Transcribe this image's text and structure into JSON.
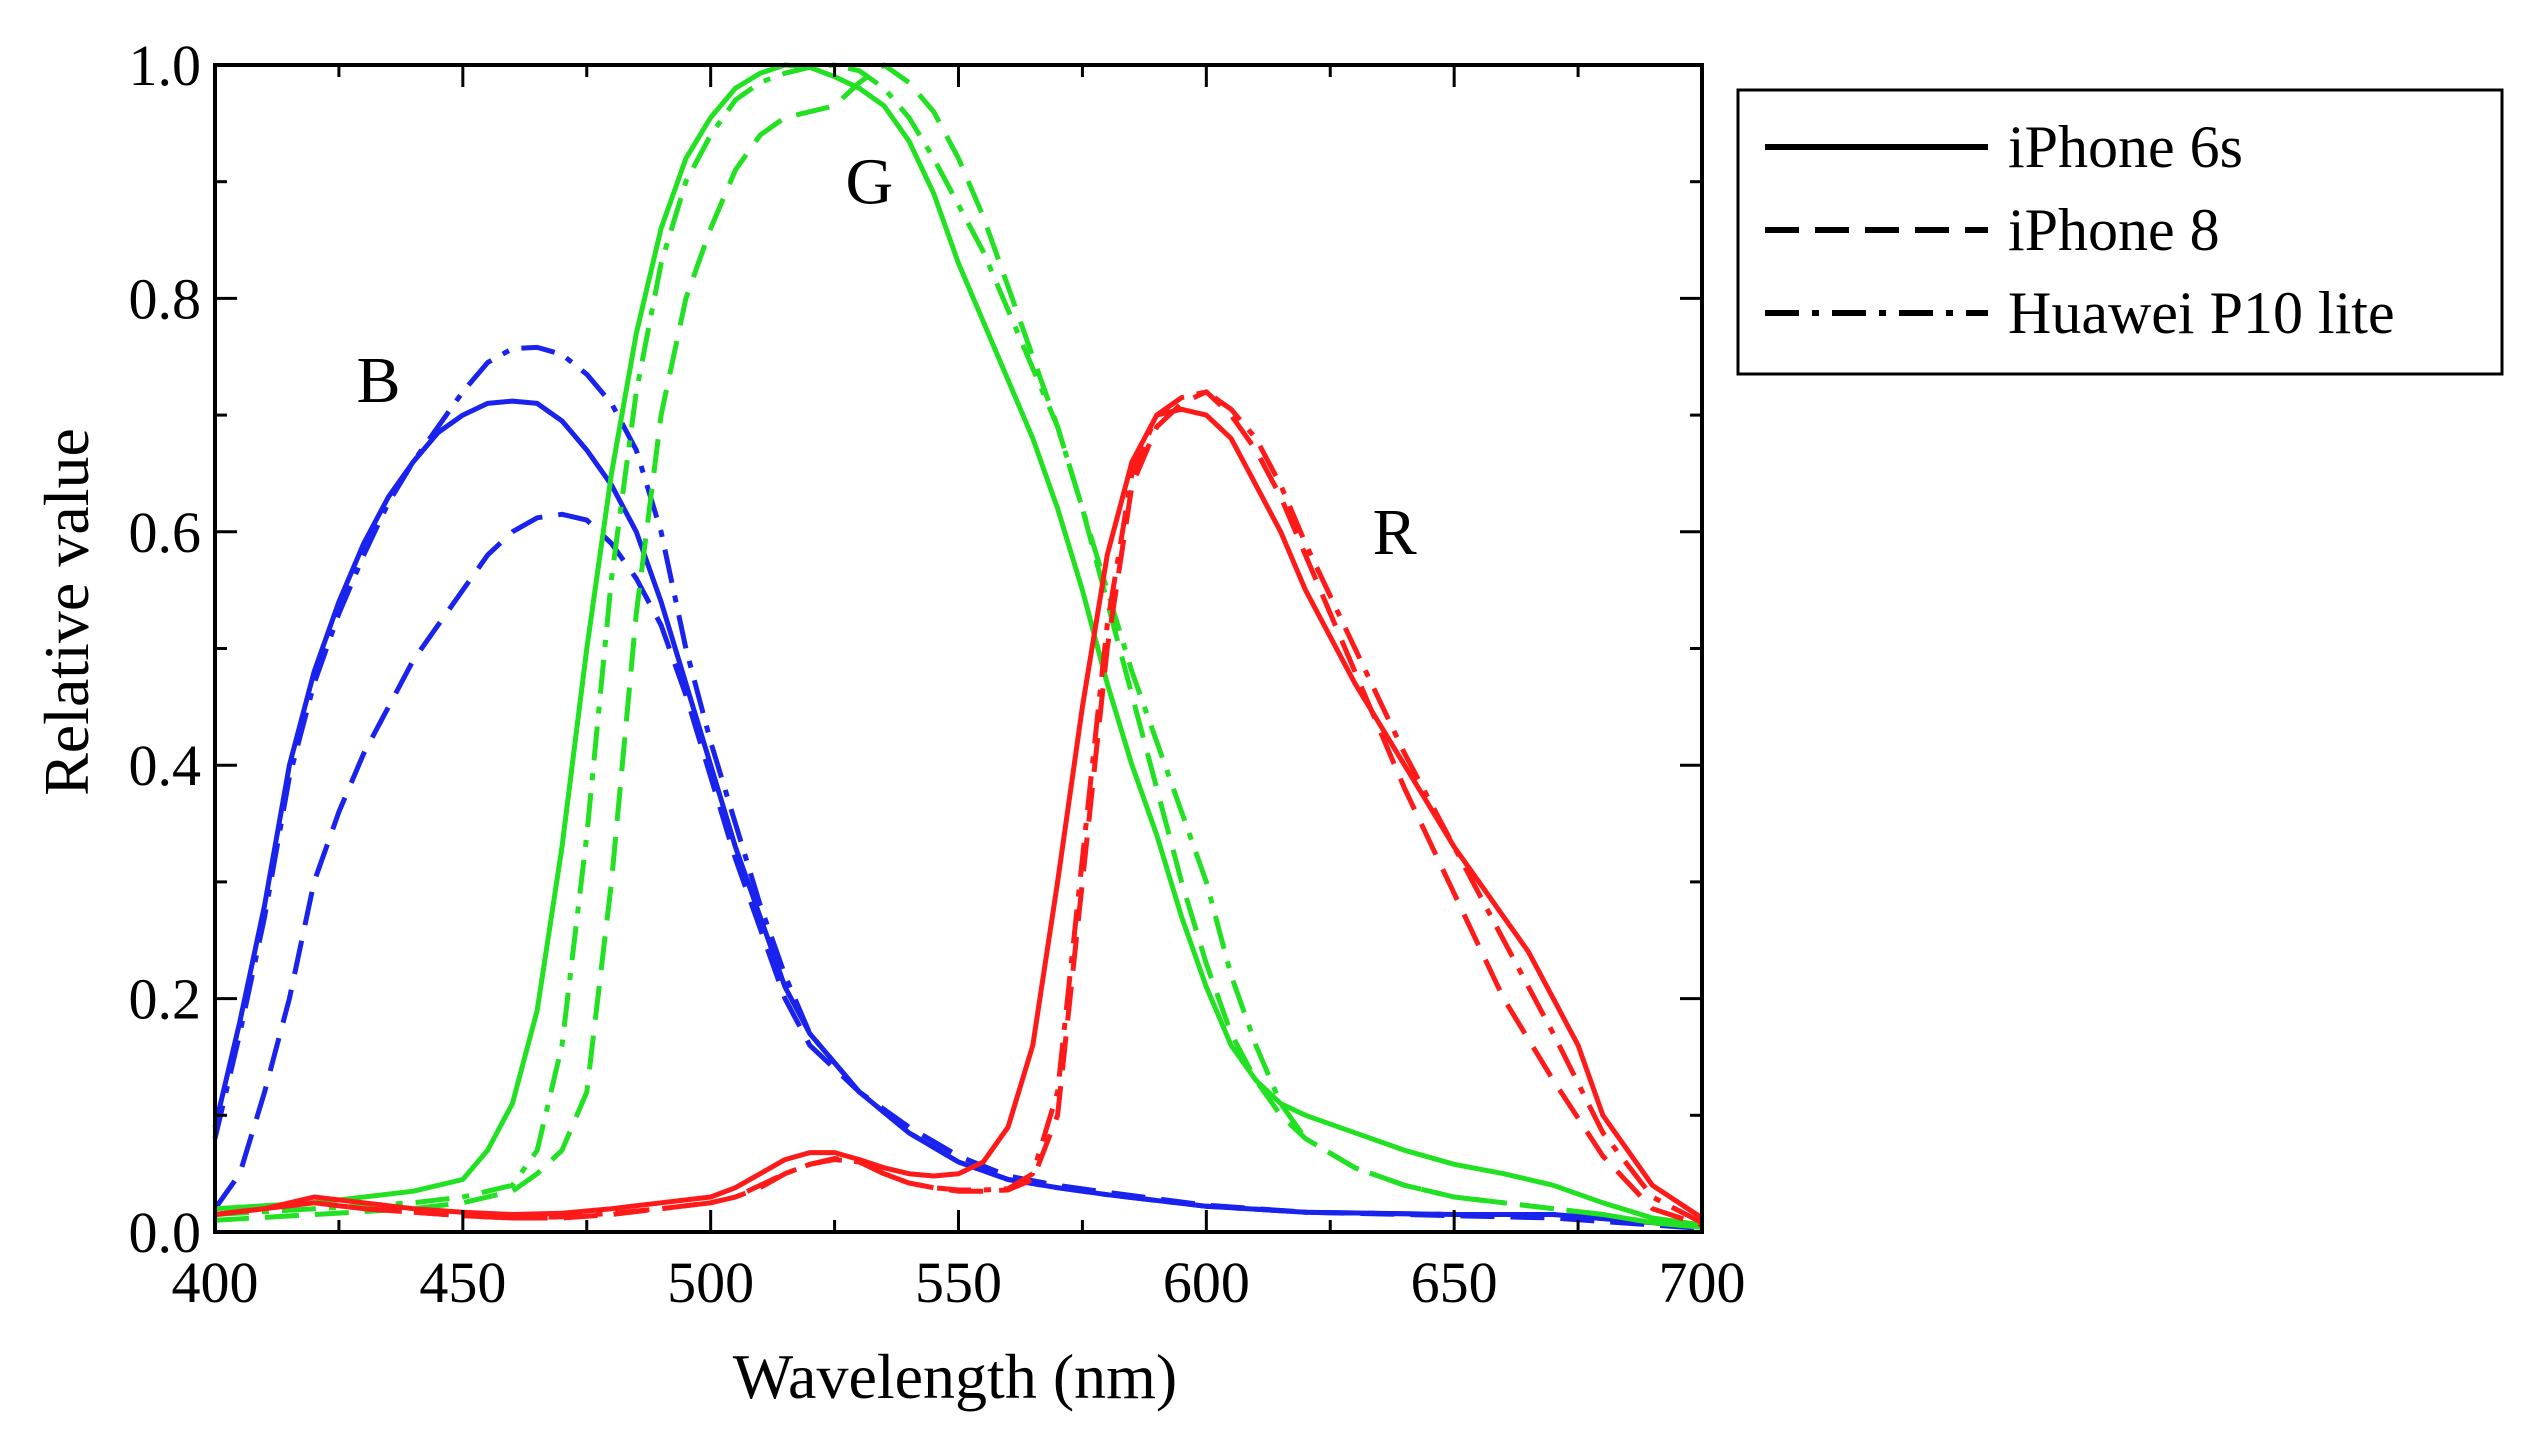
{
  "chart_data": {
    "type": "line",
    "xlabel": "Wavelength (nm)",
    "ylabel": "Relative value",
    "xlim": [
      400,
      700
    ],
    "ylim": [
      0,
      1.0
    ],
    "x_ticks": [
      400,
      450,
      500,
      550,
      600,
      650,
      700
    ],
    "x_tick_labels": [
      "400",
      "450",
      "500",
      "550",
      "600",
      "650",
      "700"
    ],
    "y_ticks": [
      0,
      0.2,
      0.4,
      0.6,
      0.8,
      1.0
    ],
    "y_tick_labels": [
      "0.0",
      "0.2",
      "0.4",
      "0.6",
      "0.8",
      "1.0"
    ],
    "grid": false,
    "legend_position": "outside-right-top",
    "legend": [
      {
        "label": "iPhone 6s",
        "style": "solid"
      },
      {
        "label": "iPhone 8",
        "style": "dashed"
      },
      {
        "label": "Huawei P10 lite",
        "style": "dashdot"
      }
    ],
    "annotations": [
      {
        "text": "B",
        "x": 433,
        "y": 0.73
      },
      {
        "text": "G",
        "x": 532,
        "y": 0.9
      },
      {
        "text": "R",
        "x": 638,
        "y": 0.6
      }
    ],
    "colors": {
      "R": "#ff1a1a",
      "G": "#22e022",
      "B": "#1a22ee",
      "axis": "#000000"
    },
    "series": [
      {
        "channel": "B",
        "device": "iPhone 6s",
        "style": "solid",
        "color": "#1a22ee",
        "x": [
          400,
          405,
          410,
          415,
          420,
          425,
          430,
          435,
          440,
          445,
          450,
          455,
          460,
          465,
          470,
          475,
          480,
          485,
          490,
          495,
          500,
          505,
          510,
          515,
          520,
          530,
          540,
          550,
          560,
          570,
          580,
          600,
          620,
          650,
          670,
          690,
          700
        ],
        "y": [
          0.09,
          0.18,
          0.28,
          0.4,
          0.48,
          0.54,
          0.59,
          0.63,
          0.66,
          0.685,
          0.7,
          0.71,
          0.712,
          0.71,
          0.695,
          0.67,
          0.64,
          0.6,
          0.54,
          0.47,
          0.4,
          0.33,
          0.27,
          0.21,
          0.17,
          0.12,
          0.085,
          0.06,
          0.045,
          0.038,
          0.032,
          0.022,
          0.017,
          0.015,
          0.015,
          0.008,
          0.004
        ]
      },
      {
        "channel": "B",
        "device": "iPhone 8",
        "style": "dashed",
        "color": "#1a22ee",
        "x": [
          400,
          405,
          410,
          415,
          420,
          425,
          430,
          435,
          440,
          445,
          450,
          455,
          460,
          465,
          470,
          475,
          480,
          485,
          490,
          495,
          500,
          505,
          510,
          515,
          520,
          530,
          540,
          550,
          560,
          570,
          580,
          600,
          620,
          650,
          670,
          690,
          700
        ],
        "y": [
          0.02,
          0.05,
          0.12,
          0.2,
          0.3,
          0.36,
          0.41,
          0.45,
          0.49,
          0.52,
          0.55,
          0.58,
          0.6,
          0.612,
          0.615,
          0.61,
          0.59,
          0.56,
          0.52,
          0.46,
          0.39,
          0.32,
          0.26,
          0.2,
          0.16,
          0.12,
          0.09,
          0.065,
          0.048,
          0.04,
          0.034,
          0.023,
          0.017,
          0.014,
          0.012,
          0.006,
          0.003
        ]
      },
      {
        "channel": "B",
        "device": "Huawei P10 lite",
        "style": "dashdot",
        "color": "#1a22ee",
        "x": [
          400,
          405,
          410,
          415,
          420,
          425,
          430,
          435,
          440,
          445,
          450,
          455,
          460,
          465,
          470,
          475,
          480,
          485,
          490,
          495,
          500,
          505,
          510,
          515,
          520,
          530,
          540,
          550,
          560,
          570,
          580,
          600,
          620,
          650,
          670,
          690,
          700
        ],
        "y": [
          0.08,
          0.17,
          0.27,
          0.39,
          0.47,
          0.53,
          0.58,
          0.625,
          0.66,
          0.69,
          0.72,
          0.745,
          0.757,
          0.758,
          0.752,
          0.735,
          0.71,
          0.67,
          0.6,
          0.5,
          0.42,
          0.35,
          0.28,
          0.22,
          0.17,
          0.12,
          0.085,
          0.06,
          0.045,
          0.038,
          0.032,
          0.022,
          0.017,
          0.015,
          0.015,
          0.008,
          0.004
        ]
      },
      {
        "channel": "G",
        "device": "iPhone 6s",
        "style": "solid",
        "color": "#22e022",
        "x": [
          400,
          420,
          440,
          450,
          455,
          460,
          465,
          470,
          475,
          480,
          485,
          490,
          495,
          500,
          505,
          510,
          515,
          520,
          525,
          530,
          535,
          540,
          545,
          550,
          555,
          560,
          565,
          570,
          575,
          580,
          585,
          590,
          595,
          600,
          605,
          610,
          615,
          620,
          630,
          640,
          650,
          660,
          670,
          680,
          690,
          700
        ],
        "y": [
          0.02,
          0.025,
          0.035,
          0.045,
          0.07,
          0.11,
          0.19,
          0.33,
          0.5,
          0.65,
          0.77,
          0.86,
          0.92,
          0.955,
          0.98,
          0.993,
          1.0,
          0.998,
          0.99,
          0.98,
          0.965,
          0.935,
          0.89,
          0.83,
          0.78,
          0.73,
          0.68,
          0.62,
          0.55,
          0.47,
          0.4,
          0.34,
          0.27,
          0.21,
          0.16,
          0.13,
          0.11,
          0.1,
          0.085,
          0.07,
          0.058,
          0.05,
          0.04,
          0.025,
          0.012,
          0.006
        ]
      },
      {
        "channel": "G",
        "device": "iPhone 8",
        "style": "dashed",
        "color": "#22e022",
        "x": [
          400,
          420,
          440,
          450,
          460,
          465,
          470,
          475,
          480,
          485,
          490,
          495,
          500,
          505,
          510,
          515,
          520,
          525,
          530,
          535,
          540,
          545,
          550,
          555,
          560,
          565,
          570,
          575,
          580,
          585,
          590,
          595,
          600,
          605,
          610,
          615,
          620,
          630,
          640,
          650,
          660,
          670,
          680,
          690,
          700
        ],
        "y": [
          0.01,
          0.015,
          0.02,
          0.025,
          0.035,
          0.05,
          0.07,
          0.12,
          0.3,
          0.53,
          0.7,
          0.8,
          0.86,
          0.91,
          0.94,
          0.955,
          0.96,
          0.965,
          0.985,
          1.0,
          0.985,
          0.96,
          0.92,
          0.87,
          0.81,
          0.75,
          0.69,
          0.62,
          0.54,
          0.46,
          0.38,
          0.3,
          0.23,
          0.17,
          0.13,
          0.1,
          0.08,
          0.055,
          0.04,
          0.03,
          0.025,
          0.02,
          0.015,
          0.008,
          0.004
        ]
      },
      {
        "channel": "G",
        "device": "Huawei P10 lite",
        "style": "dashdot",
        "color": "#22e022",
        "x": [
          400,
          420,
          440,
          450,
          460,
          465,
          470,
          475,
          480,
          485,
          490,
          495,
          500,
          505,
          510,
          515,
          520,
          525,
          530,
          535,
          540,
          545,
          550,
          555,
          560,
          565,
          570,
          575,
          580,
          585,
          590,
          595,
          600,
          605,
          610,
          615,
          620,
          630,
          640,
          650,
          660,
          670,
          680,
          690,
          700
        ],
        "y": [
          0.015,
          0.02,
          0.025,
          0.03,
          0.04,
          0.07,
          0.16,
          0.34,
          0.56,
          0.72,
          0.83,
          0.9,
          0.94,
          0.97,
          0.985,
          0.993,
          0.998,
          1.0,
          0.995,
          0.98,
          0.955,
          0.92,
          0.88,
          0.84,
          0.79,
          0.74,
          0.69,
          0.62,
          0.55,
          0.48,
          0.42,
          0.36,
          0.3,
          0.22,
          0.16,
          0.11,
          0.08,
          0.055,
          0.04,
          0.03,
          0.025,
          0.02,
          0.015,
          0.008,
          0.004
        ]
      },
      {
        "channel": "R",
        "device": "iPhone 6s",
        "style": "solid",
        "color": "#ff1a1a",
        "x": [
          400,
          410,
          420,
          430,
          440,
          450,
          460,
          470,
          480,
          490,
          500,
          505,
          510,
          515,
          520,
          525,
          530,
          535,
          540,
          545,
          550,
          555,
          560,
          565,
          570,
          575,
          580,
          585,
          590,
          595,
          600,
          605,
          610,
          615,
          620,
          630,
          640,
          650,
          660,
          665,
          670,
          675,
          680,
          690,
          700
        ],
        "y": [
          0.015,
          0.02,
          0.03,
          0.025,
          0.02,
          0.017,
          0.015,
          0.016,
          0.02,
          0.025,
          0.03,
          0.038,
          0.05,
          0.062,
          0.068,
          0.068,
          0.062,
          0.055,
          0.05,
          0.048,
          0.05,
          0.06,
          0.09,
          0.16,
          0.3,
          0.45,
          0.58,
          0.66,
          0.7,
          0.705,
          0.7,
          0.68,
          0.64,
          0.6,
          0.55,
          0.47,
          0.4,
          0.33,
          0.27,
          0.24,
          0.2,
          0.16,
          0.1,
          0.04,
          0.012
        ]
      },
      {
        "channel": "R",
        "device": "iPhone 8",
        "style": "dashed",
        "color": "#ff1a1a",
        "x": [
          400,
          410,
          420,
          430,
          440,
          450,
          460,
          470,
          480,
          490,
          500,
          505,
          510,
          515,
          520,
          525,
          530,
          535,
          540,
          545,
          550,
          555,
          560,
          565,
          570,
          575,
          580,
          585,
          590,
          595,
          600,
          605,
          610,
          615,
          620,
          630,
          640,
          650,
          660,
          670,
          680,
          690,
          700
        ],
        "y": [
          0.015,
          0.02,
          0.025,
          0.02,
          0.017,
          0.014,
          0.012,
          0.012,
          0.015,
          0.02,
          0.025,
          0.03,
          0.038,
          0.05,
          0.058,
          0.063,
          0.06,
          0.05,
          0.042,
          0.038,
          0.035,
          0.035,
          0.036,
          0.045,
          0.1,
          0.3,
          0.5,
          0.64,
          0.69,
          0.71,
          0.72,
          0.7,
          0.67,
          0.63,
          0.58,
          0.48,
          0.38,
          0.29,
          0.2,
          0.13,
          0.065,
          0.02,
          0.006
        ]
      },
      {
        "channel": "R",
        "device": "Huawei P10 lite",
        "style": "dashdot",
        "color": "#ff1a1a",
        "x": [
          400,
          410,
          420,
          430,
          440,
          450,
          460,
          470,
          480,
          490,
          500,
          505,
          510,
          515,
          520,
          525,
          530,
          535,
          540,
          545,
          550,
          555,
          560,
          565,
          570,
          575,
          580,
          585,
          590,
          595,
          600,
          605,
          610,
          615,
          620,
          630,
          640,
          650,
          660,
          670,
          680,
          690,
          700
        ],
        "y": [
          0.015,
          0.02,
          0.025,
          0.02,
          0.017,
          0.014,
          0.012,
          0.013,
          0.016,
          0.02,
          0.025,
          0.03,
          0.04,
          0.05,
          0.058,
          0.062,
          0.06,
          0.05,
          0.042,
          0.038,
          0.036,
          0.036,
          0.037,
          0.05,
          0.12,
          0.32,
          0.52,
          0.65,
          0.7,
          0.715,
          0.72,
          0.705,
          0.68,
          0.64,
          0.59,
          0.5,
          0.41,
          0.33,
          0.25,
          0.17,
          0.085,
          0.03,
          0.008
        ]
      }
    ]
  }
}
